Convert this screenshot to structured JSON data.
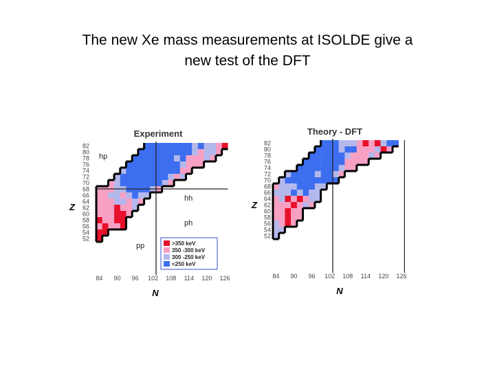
{
  "slide": {
    "title_line1": "The new Xe mass measurements at ISOLDE give a",
    "title_line2": "new test of the DFT"
  },
  "chart_data": [
    {
      "type": "heatmap",
      "title": "Experiment",
      "xlabel": "N",
      "ylabel": "Z",
      "x_ticks": [
        "84",
        "90",
        "96",
        "102",
        "108",
        "114",
        "120",
        "126"
      ],
      "y_ticks": [
        "82",
        "80",
        "78",
        "76",
        "74",
        "72",
        "70",
        "68",
        "66",
        "64",
        "62",
        "60",
        "58",
        "56",
        "54",
        "52"
      ],
      "region_labels": [
        "hp",
        "hh",
        "ph",
        "pp"
      ],
      "divider_lines": {
        "N": 104,
        "Z": 67
      },
      "legend": [
        {
          "label": ">350 keV",
          "color": "#e8102a"
        },
        {
          "label": "350 -300 keV",
          "color": "#f7a0c4"
        },
        {
          "label": "300 -250 keV",
          "color": "#b3b8ec"
        },
        {
          "label": "<250 keV",
          "color": "#3d6ef0"
        }
      ],
      "legend_position": "bottom-right",
      "cell_rows_note": "Each row: Z, first N (even), category code per even N step of 2. 0=>350, 1=350-300, 2=300-250, 3=<250 keV.",
      "cells": [
        {
          "Z": 82,
          "N_start": 100,
          "codes": [
            3,
            3,
            3,
            3,
            3,
            3,
            3,
            3,
            2,
            3,
            2,
            2,
            1,
            0
          ]
        },
        {
          "Z": 80,
          "N_start": 98,
          "codes": [
            3,
            3,
            3,
            3,
            3,
            3,
            3,
            3,
            3,
            2,
            1,
            2,
            2,
            1
          ]
        },
        {
          "Z": 78,
          "N_start": 96,
          "codes": [
            3,
            3,
            3,
            3,
            3,
            3,
            3,
            2,
            3,
            1,
            1,
            1,
            2,
            1
          ]
        },
        {
          "Z": 76,
          "N_start": 94,
          "codes": [
            3,
            3,
            3,
            3,
            3,
            3,
            3,
            3,
            3,
            2,
            1,
            1,
            1
          ]
        },
        {
          "Z": 74,
          "N_start": 92,
          "codes": [
            2,
            3,
            3,
            3,
            3,
            3,
            3,
            3,
            3,
            3,
            1,
            1
          ]
        },
        {
          "Z": 72,
          "N_start": 90,
          "codes": [
            2,
            3,
            3,
            3,
            3,
            3,
            3,
            3,
            3,
            2,
            1,
            2
          ]
        },
        {
          "Z": 70,
          "N_start": 88,
          "codes": [
            1,
            2,
            3,
            3,
            3,
            3,
            3,
            3,
            3,
            2,
            1
          ]
        },
        {
          "Z": 68,
          "N_start": 84,
          "codes": [
            1,
            1,
            1,
            2,
            2,
            3,
            3,
            3,
            3,
            2,
            1
          ]
        },
        {
          "Z": 66,
          "N_start": 84,
          "codes": [
            1,
            1,
            2,
            2,
            1,
            2,
            3,
            2,
            2
          ]
        },
        {
          "Z": 64,
          "N_start": 84,
          "codes": [
            1,
            1,
            1,
            2,
            2,
            1,
            2,
            1
          ]
        },
        {
          "Z": 62,
          "N_start": 84,
          "codes": [
            1,
            1,
            1,
            0,
            1,
            1,
            2
          ]
        },
        {
          "Z": 60,
          "N_start": 84,
          "codes": [
            1,
            1,
            1,
            0,
            0,
            1
          ]
        },
        {
          "Z": 58,
          "N_start": 84,
          "codes": [
            0,
            1,
            1,
            0,
            0
          ]
        },
        {
          "Z": 56,
          "N_start": 84,
          "codes": [
            1,
            0,
            1,
            1,
            0
          ]
        },
        {
          "Z": 54,
          "N_start": 84,
          "codes": [
            0,
            0
          ]
        },
        {
          "Z": 52,
          "N_start": 84,
          "codes": [
            0
          ]
        }
      ]
    },
    {
      "type": "heatmap",
      "title": "Theory - DFT",
      "xlabel": "N",
      "ylabel": "Z",
      "x_ticks": [
        "84",
        "90",
        "96",
        "102",
        "108",
        "114",
        "120",
        "126"
      ],
      "y_ticks": [
        "82",
        "80",
        "78",
        "76",
        "74",
        "72",
        "70",
        "68",
        "66",
        "64",
        "62",
        "60",
        "58",
        "56",
        "54",
        "52"
      ],
      "divider_lines": {
        "N": 104
      },
      "cell_rows_note": "Same encoding as the Experiment panel.",
      "cells": [
        {
          "Z": 82,
          "N_start": 100,
          "codes": [
            3,
            3,
            3,
            2,
            2,
            2,
            1,
            0,
            1,
            0,
            2,
            3,
            3
          ]
        },
        {
          "Z": 80,
          "N_start": 98,
          "codes": [
            3,
            3,
            3,
            3,
            2,
            3,
            3,
            1,
            1,
            1,
            2,
            0,
            1
          ]
        },
        {
          "Z": 78,
          "N_start": 96,
          "codes": [
            3,
            3,
            3,
            3,
            3,
            3,
            2,
            1,
            1,
            1,
            2,
            1
          ]
        },
        {
          "Z": 76,
          "N_start": 94,
          "codes": [
            3,
            3,
            3,
            3,
            3,
            3,
            3,
            1,
            1,
            1,
            1
          ]
        },
        {
          "Z": 74,
          "N_start": 92,
          "codes": [
            3,
            3,
            3,
            3,
            3,
            3,
            3,
            2,
            1,
            1
          ]
        },
        {
          "Z": 72,
          "N_start": 88,
          "codes": [
            2,
            3,
            3,
            3,
            3,
            2,
            3,
            3,
            2,
            1
          ]
        },
        {
          "Z": 70,
          "N_start": 86,
          "codes": [
            2,
            3,
            3,
            3,
            3,
            3,
            3,
            3,
            3,
            3
          ]
        },
        {
          "Z": 68,
          "N_start": 84,
          "codes": [
            1,
            2,
            2,
            2,
            3,
            3,
            3,
            2,
            2
          ]
        },
        {
          "Z": 66,
          "N_start": 84,
          "codes": [
            2,
            2,
            2,
            3,
            2,
            3,
            2,
            2
          ]
        },
        {
          "Z": 64,
          "N_start": 84,
          "codes": [
            1,
            2,
            0,
            1,
            0,
            1,
            2,
            2
          ]
        },
        {
          "Z": 62,
          "N_start": 84,
          "codes": [
            1,
            1,
            1,
            0,
            1,
            2,
            1
          ]
        },
        {
          "Z": 60,
          "N_start": 84,
          "codes": [
            1,
            1,
            0,
            1,
            1
          ]
        },
        {
          "Z": 58,
          "N_start": 84,
          "codes": [
            1,
            1,
            0,
            1,
            1
          ]
        },
        {
          "Z": 56,
          "N_start": 84,
          "codes": [
            2,
            1,
            0,
            1
          ]
        },
        {
          "Z": 54,
          "N_start": 84,
          "codes": [
            2,
            2
          ]
        },
        {
          "Z": 52,
          "N_start": 84,
          "codes": [
            2
          ]
        }
      ]
    }
  ]
}
